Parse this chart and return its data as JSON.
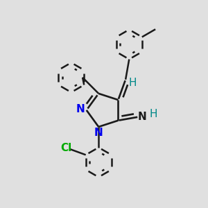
{
  "background_color": "#e0e0e0",
  "bond_color": "#1a1a1a",
  "N_color": "#0000ee",
  "Cl_color": "#00aa00",
  "H_color": "#008888",
  "imine_N_color": "#1a1a1a",
  "figsize": [
    3.0,
    3.0
  ],
  "dpi": 100,
  "xlim": [
    0,
    10
  ],
  "ylim": [
    0,
    10
  ]
}
